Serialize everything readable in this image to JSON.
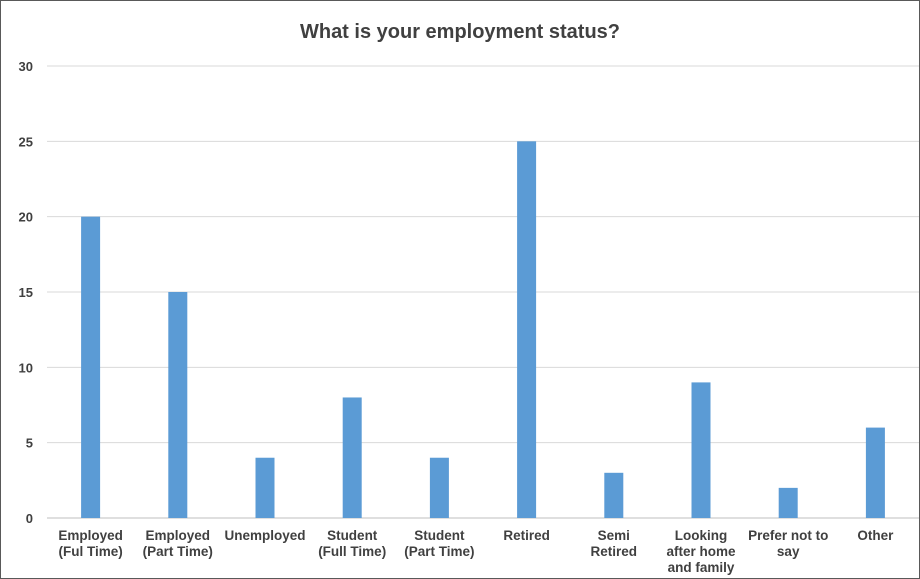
{
  "chart_data": {
    "type": "bar",
    "title": "What is your employment status?",
    "categories": [
      [
        "Employed",
        "(Ful Time)"
      ],
      [
        "Employed",
        "(Part Time)"
      ],
      [
        "Unemployed"
      ],
      [
        "Student",
        "(Full Time)"
      ],
      [
        "Student",
        "(Part Time)"
      ],
      [
        "Retired"
      ],
      [
        "Semi",
        "Retired"
      ],
      [
        "Looking",
        "after home",
        "and family"
      ],
      [
        "Prefer not to",
        "say"
      ],
      [
        "Other"
      ]
    ],
    "values": [
      20,
      15,
      4,
      8,
      4,
      25,
      3,
      9,
      2,
      6
    ],
    "ylim": [
      0,
      30
    ],
    "yticks": [
      0,
      5,
      10,
      15,
      20,
      25,
      30
    ],
    "grid": true,
    "bar_color": "#5b9bd5",
    "xlabel": "",
    "ylabel": ""
  }
}
